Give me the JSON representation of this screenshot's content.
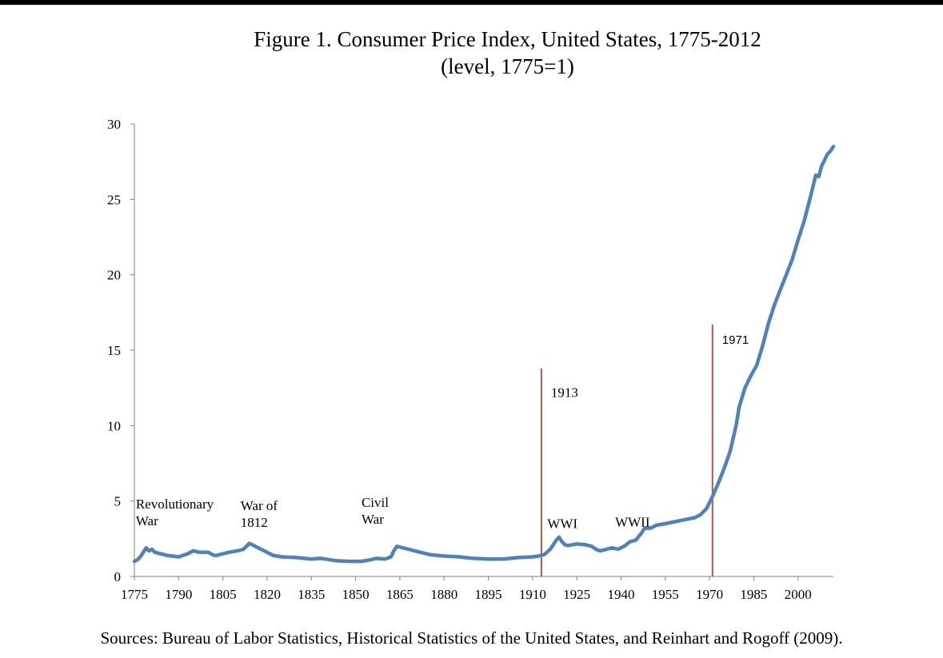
{
  "title": "Figure 1. Consumer Price Index, United States, 1775-2012",
  "subtitle": "(level, 1775=1)",
  "source": "Sources: Bureau of Labor Statistics, Historical Statistics of the United States, and Reinhart and Rogoff (2009).",
  "colors": {
    "line": "#4f81bd",
    "marker": "#b85450",
    "axis": "#7f7f7f"
  },
  "chart_data": {
    "type": "line",
    "xlim": [
      1775,
      2012
    ],
    "ylim": [
      0,
      30
    ],
    "y_ticks": [
      0,
      5,
      10,
      15,
      20,
      25,
      30
    ],
    "x_ticks": [
      1775,
      1790,
      1805,
      1820,
      1835,
      1850,
      1865,
      1880,
      1895,
      1910,
      1925,
      1940,
      1955,
      1970,
      1985,
      2000
    ],
    "grid": false,
    "legend": "none",
    "x": [
      1775,
      1776,
      1777,
      1778,
      1779,
      1780,
      1781,
      1782,
      1784,
      1786,
      1790,
      1793,
      1795,
      1797,
      1800,
      1802,
      1803,
      1805,
      1807,
      1810,
      1812,
      1814,
      1815,
      1817,
      1820,
      1822,
      1825,
      1830,
      1835,
      1838,
      1840,
      1843,
      1848,
      1852,
      1855,
      1857,
      1860,
      1862,
      1863,
      1864,
      1866,
      1868,
      1870,
      1875,
      1880,
      1885,
      1890,
      1895,
      1900,
      1905,
      1910,
      1912,
      1914,
      1916,
      1917,
      1918,
      1919,
      1920,
      1921,
      1922,
      1925,
      1928,
      1930,
      1932,
      1933,
      1935,
      1937,
      1939,
      1941,
      1943,
      1945,
      1947,
      1948,
      1950,
      1952,
      1955,
      1960,
      1965,
      1967,
      1969,
      1971,
      1973,
      1975,
      1977,
      1979,
      1980,
      1982,
      1984,
      1986,
      1988,
      1990,
      1992,
      1994,
      1996,
      1998,
      2000,
      2002,
      2004,
      2006,
      2007,
      2008,
      2009,
      2010,
      2011,
      2012
    ],
    "y": [
      1.0,
      1.1,
      1.3,
      1.6,
      1.9,
      1.7,
      1.8,
      1.6,
      1.5,
      1.4,
      1.3,
      1.5,
      1.7,
      1.6,
      1.6,
      1.4,
      1.4,
      1.5,
      1.6,
      1.7,
      1.8,
      2.2,
      2.1,
      1.9,
      1.6,
      1.4,
      1.3,
      1.25,
      1.15,
      1.2,
      1.15,
      1.05,
      1.0,
      1.0,
      1.1,
      1.2,
      1.15,
      1.3,
      1.7,
      2.0,
      1.9,
      1.8,
      1.7,
      1.45,
      1.35,
      1.3,
      1.2,
      1.15,
      1.15,
      1.25,
      1.3,
      1.35,
      1.45,
      1.8,
      2.1,
      2.4,
      2.6,
      2.3,
      2.1,
      2.05,
      2.15,
      2.1,
      2.0,
      1.75,
      1.7,
      1.8,
      1.9,
      1.8,
      2.0,
      2.3,
      2.4,
      2.9,
      3.2,
      3.2,
      3.4,
      3.5,
      3.7,
      3.9,
      4.1,
      4.5,
      5.3,
      6.2,
      7.2,
      8.3,
      10.0,
      11.2,
      12.5,
      13.3,
      14.0,
      15.3,
      16.8,
      18.0,
      19.0,
      20.0,
      21.0,
      22.3,
      23.5,
      25.0,
      26.6,
      26.5,
      27.2,
      27.6,
      28.0,
      28.2,
      28.5
    ],
    "markers": [
      {
        "label": "1913",
        "x": 1913,
        "y_top": 13.8
      },
      {
        "label": "1971",
        "x": 1971,
        "y_top": 16.7
      }
    ],
    "annotations": [
      {
        "lines": [
          "Revolutionary",
          "War"
        ],
        "x": 1775.5,
        "y": 4.5
      },
      {
        "lines": [
          "War of",
          "1812"
        ],
        "x": 1811,
        "y": 4.4
      },
      {
        "lines": [
          "Civil",
          "War"
        ],
        "x": 1852,
        "y": 4.6
      },
      {
        "lines": [
          "WWI"
        ],
        "x": 1915,
        "y": 3.2
      },
      {
        "lines": [
          "WWII"
        ],
        "x": 1938,
        "y": 3.3
      }
    ]
  }
}
